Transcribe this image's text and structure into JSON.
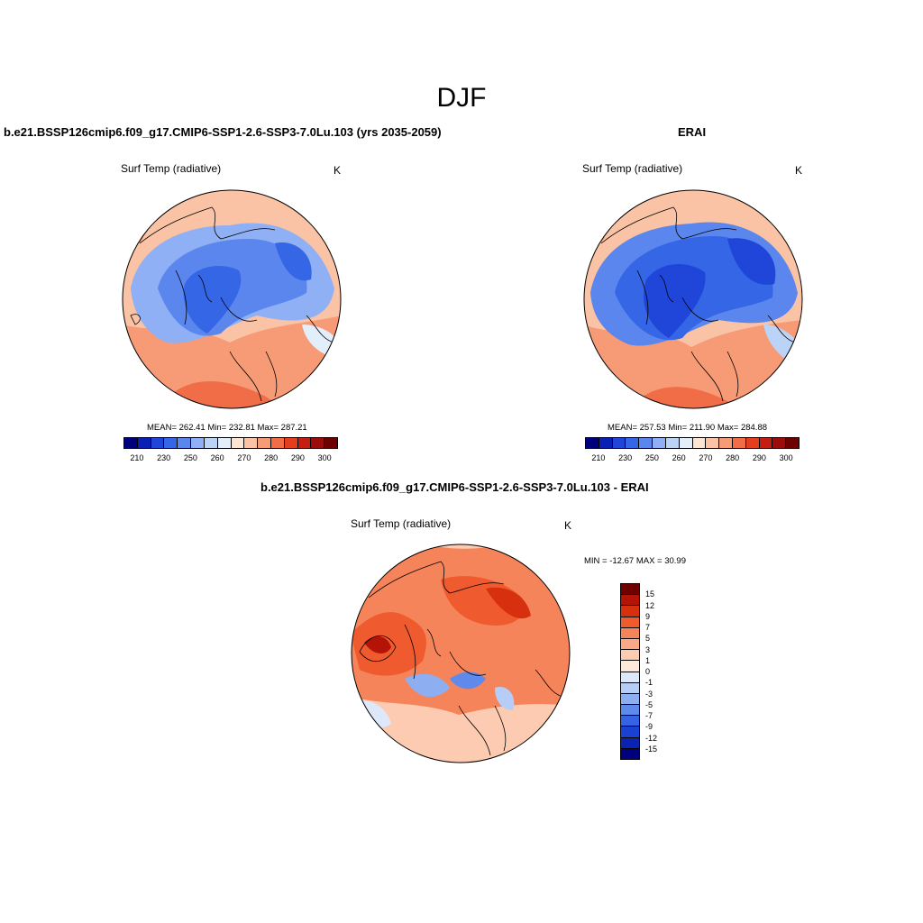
{
  "figure": {
    "title": "DJF"
  },
  "panels": [
    {
      "title": "b.e21.BSSP126cmip6.f09_g17.CMIP6-SSP1-2.6-SSP3-7.0Lu.103 (yrs 2035-2059)",
      "variable": "Surf Temp (radiative)",
      "units": "K",
      "stats": "MEAN= 262.41  Min= 232.81  Max= 287.21",
      "colorbar_labels": [
        "210",
        "230",
        "250",
        "260",
        "270",
        "280",
        "290",
        "300"
      ]
    },
    {
      "title": "ERAI",
      "variable": "Surf Temp (radiative)",
      "units": "K",
      "stats": "MEAN= 257.53  Min= 211.90  Max= 284.88",
      "colorbar_labels": [
        "210",
        "230",
        "250",
        "260",
        "270",
        "280",
        "290",
        "300"
      ]
    },
    {
      "title": "b.e21.BSSP126cmip6.f09_g17.CMIP6-SSP1-2.6-SSP3-7.0Lu.103 - ERAI",
      "variable": "Surf Temp (radiative)",
      "units": "K",
      "stats": "MIN = -12.67 MAX =  30.99",
      "colorbar_labels": [
        "15",
        "12",
        "9",
        "7",
        "5",
        "3",
        "1",
        "0",
        "-1",
        "-3",
        "-5",
        "-7",
        "-9",
        "-12",
        "-15"
      ]
    }
  ],
  "colors": {
    "abs_scale": [
      "#00007f",
      "#0a1fb4",
      "#1f46d9",
      "#3566e6",
      "#5a86ee",
      "#8fb0f4",
      "#bcd3f8",
      "#e3eefb",
      "#fde5d2",
      "#fbc3a6",
      "#f79a76",
      "#f06d48",
      "#e43e1f",
      "#c51d0f",
      "#9b0d08",
      "#6e0000"
    ],
    "diff_scale": [
      "#6e0000",
      "#b41408",
      "#d7300e",
      "#ef5a2e",
      "#f6845a",
      "#f9a985",
      "#fccbb1",
      "#fde9d9",
      "#dde9fb",
      "#b6cdf7",
      "#8eaef2",
      "#5f8aec",
      "#3563e3",
      "#1a41d2",
      "#0a23b0",
      "#00007f"
    ],
    "land_outline": "#000000"
  }
}
